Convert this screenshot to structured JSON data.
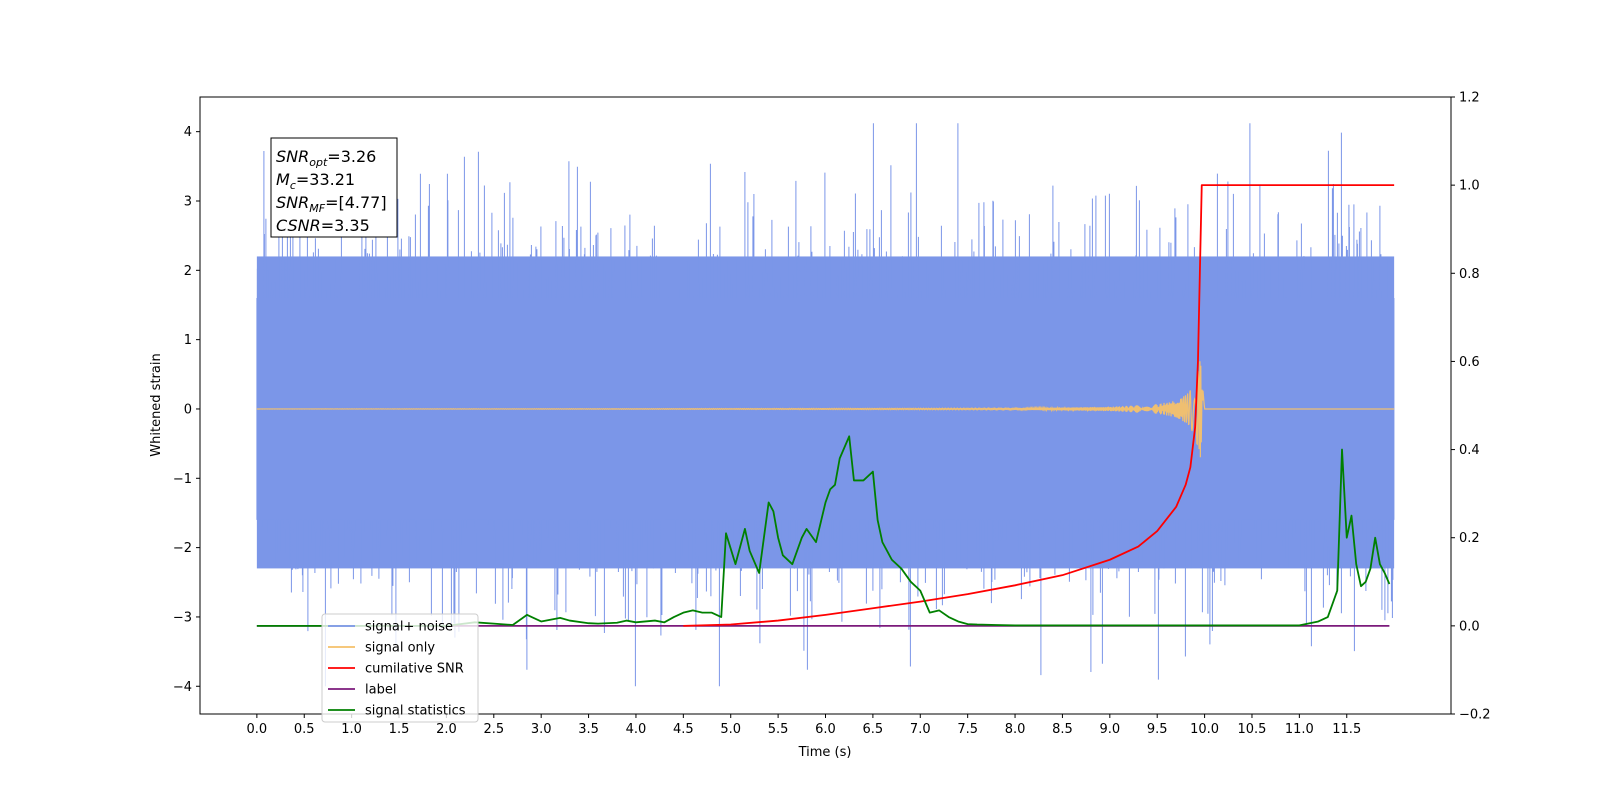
{
  "chart_data": {
    "type": "line",
    "title": "",
    "xlabel": "Time (s)",
    "ylabel": "Whitened strain",
    "y2label": "",
    "xlim": [
      -0.6,
      12.6
    ],
    "ylim": [
      -4.4,
      4.5
    ],
    "y2lim": [
      -0.2,
      1.2
    ],
    "grid": false,
    "legend_position": "lower-left",
    "x_ticks": [
      "0.0",
      "0.5",
      "1.0",
      "1.5",
      "2.0",
      "2.5",
      "3.0",
      "3.5",
      "4.0",
      "4.5",
      "5.0",
      "5.5",
      "6.0",
      "6.5",
      "7.0",
      "7.5",
      "8.0",
      "8.5",
      "9.0",
      "9.5",
      "10.0",
      "10.5",
      "11.0",
      "11.5"
    ],
    "y_ticks": [
      "4",
      "3",
      "2",
      "1",
      "0",
      "−1",
      "−2",
      "−3",
      "−4"
    ],
    "y2_ticks": [
      "1.2",
      "1.0",
      "0.8",
      "0.6",
      "0.4",
      "0.2",
      "0.0",
      "−0.2"
    ],
    "annotation": {
      "lines": [
        {
          "sym": "SNR",
          "sub": "opt",
          "value": "=3.26"
        },
        {
          "sym": "M",
          "sub": "c",
          "value": "=33.21"
        },
        {
          "sym": "SNR",
          "sub": "MF",
          "value": "=[4.77]"
        },
        {
          "sym": "CSNR",
          "sub": "",
          "value": "=3.35"
        }
      ]
    },
    "series": [
      {
        "name": "signal+ noise",
        "color": "#7b96e8",
        "axis": "left",
        "note": "whitened strain data, approx. unit-variance noise spanning about −4 to +4",
        "x_range": [
          0.0,
          12.0
        ],
        "envelope": {
          "lower": -2.3,
          "upper": 2.2,
          "min": -4.0,
          "max": 4.12
        }
      },
      {
        "name": "signal only",
        "color": "#f5c16a",
        "axis": "left",
        "x": [
          0.0,
          8.0,
          9.0,
          9.5,
          9.7,
          9.8,
          9.9,
          9.95,
          10.0,
          12.0
        ],
        "amplitude": [
          0.0,
          0.01,
          0.03,
          0.07,
          0.12,
          0.2,
          0.38,
          0.78,
          0.0,
          0.0
        ]
      },
      {
        "name": "cumilative SNR",
        "color": "#ff0000",
        "axis": "right",
        "x": [
          4.5,
          5.0,
          5.5,
          6.0,
          6.5,
          7.0,
          7.5,
          8.0,
          8.5,
          9.0,
          9.3,
          9.5,
          9.7,
          9.8,
          9.85,
          9.9,
          9.93,
          9.95,
          9.97,
          10.0,
          12.0
        ],
        "y": [
          0.0,
          0.003,
          0.012,
          0.025,
          0.04,
          0.055,
          0.072,
          0.092,
          0.115,
          0.15,
          0.18,
          0.215,
          0.27,
          0.32,
          0.36,
          0.45,
          0.6,
          0.8,
          1.0,
          1.0,
          1.0
        ]
      },
      {
        "name": "label",
        "color": "#7b1a7b",
        "axis": "right",
        "x": [
          0.0,
          11.95
        ],
        "y": [
          0.0,
          0.0
        ]
      },
      {
        "name": "signal statistics",
        "color": "#008000",
        "axis": "right",
        "x": [
          0.0,
          2.0,
          2.3,
          2.5,
          2.7,
          2.85,
          2.9,
          3.0,
          3.2,
          3.3,
          3.5,
          3.6,
          3.8,
          3.9,
          4.0,
          4.1,
          4.2,
          4.3,
          4.4,
          4.5,
          4.6,
          4.7,
          4.8,
          4.9,
          4.95,
          5.05,
          5.15,
          5.2,
          5.3,
          5.4,
          5.45,
          5.5,
          5.55,
          5.65,
          5.75,
          5.8,
          5.9,
          6.0,
          6.05,
          6.1,
          6.15,
          6.25,
          6.3,
          6.4,
          6.5,
          6.55,
          6.6,
          6.7,
          6.8,
          6.9,
          7.0,
          7.1,
          7.2,
          7.3,
          7.4,
          7.5,
          7.6,
          7.8,
          8.0,
          8.5,
          9.0,
          10.0,
          11.0,
          11.2,
          11.3,
          11.4,
          11.45,
          11.5,
          11.55,
          11.6,
          11.65,
          11.7,
          11.75,
          11.8,
          11.85,
          11.9,
          11.95
        ],
        "y": [
          0.0,
          0.0,
          0.008,
          0.005,
          0.002,
          0.025,
          0.02,
          0.01,
          0.018,
          0.012,
          0.006,
          0.005,
          0.007,
          0.012,
          0.008,
          0.01,
          0.012,
          0.008,
          0.02,
          0.03,
          0.035,
          0.03,
          0.03,
          0.02,
          0.21,
          0.14,
          0.22,
          0.17,
          0.12,
          0.28,
          0.26,
          0.2,
          0.16,
          0.14,
          0.2,
          0.22,
          0.19,
          0.28,
          0.31,
          0.32,
          0.38,
          0.43,
          0.33,
          0.33,
          0.35,
          0.24,
          0.19,
          0.15,
          0.13,
          0.1,
          0.08,
          0.03,
          0.035,
          0.02,
          0.01,
          0.004,
          0.003,
          0.002,
          0.001,
          0.001,
          0.001,
          0.001,
          0.001,
          0.01,
          0.02,
          0.08,
          0.4,
          0.2,
          0.25,
          0.14,
          0.09,
          0.1,
          0.13,
          0.2,
          0.14,
          0.12,
          0.095
        ]
      }
    ]
  }
}
